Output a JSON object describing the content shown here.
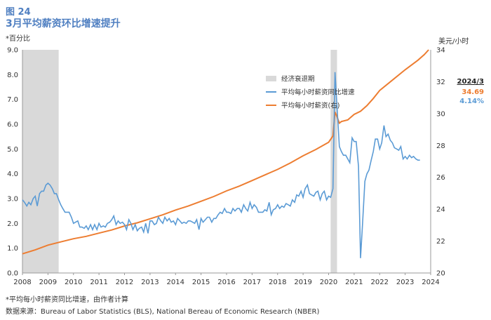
{
  "header": {
    "figure_label": "图 24",
    "title": "3月平均薪资环比增速提升"
  },
  "units": {
    "left": "*百分比",
    "right": "美元/小时"
  },
  "latest": {
    "date": "2024/3",
    "wage": "34.69",
    "growth": "4.14%"
  },
  "footnote": "*平均每小时薪资同比增速，由作者计算",
  "source": "数据来源：Bureau of Labor Statistics (BLS), National Bereau of Economic Research (NBER)",
  "chart_data": {
    "type": "line",
    "colors": {
      "growth": "#5b9bd5",
      "wage": "#ed7d31",
      "recession": "#d9d9d9"
    },
    "x_range": [
      2008,
      2024
    ],
    "x_ticks": [
      "2008",
      "2009",
      "2010",
      "2011",
      "2012",
      "2013",
      "2014",
      "2015",
      "2016",
      "2017",
      "2018",
      "2019",
      "2020",
      "2021",
      "2022",
      "2023",
      "2024"
    ],
    "y_left": {
      "range": [
        0.0,
        9.0
      ],
      "ticks": [
        "0.0",
        "1.0",
        "2.0",
        "3.0",
        "4.0",
        "5.0",
        "6.0",
        "7.0",
        "8.0",
        "9.0"
      ]
    },
    "y_right": {
      "range": [
        20,
        34
      ],
      "ticks": [
        "20",
        "22",
        "24",
        "26",
        "28",
        "30",
        "32",
        "34"
      ]
    },
    "grid": false,
    "legend_position": "top-center-right",
    "legend": {
      "recession": "经济衰退期",
      "growth": "平均每小时薪资同比增速",
      "wage": "平均每小时薪资(右)"
    },
    "recessions": [
      [
        2008.0,
        2009.42
      ],
      [
        2020.08,
        2020.33
      ]
    ],
    "series": [
      {
        "name": "平均每小时薪资同比增速",
        "axis": "left",
        "points": [
          [
            2008.0,
            2.95
          ],
          [
            2008.08,
            2.85
          ],
          [
            2008.17,
            2.7
          ],
          [
            2008.25,
            2.85
          ],
          [
            2008.33,
            2.75
          ],
          [
            2008.42,
            3.0
          ],
          [
            2008.5,
            3.1
          ],
          [
            2008.58,
            2.7
          ],
          [
            2008.67,
            3.2
          ],
          [
            2008.75,
            3.3
          ],
          [
            2008.83,
            3.3
          ],
          [
            2008.92,
            3.55
          ],
          [
            2009.0,
            3.62
          ],
          [
            2009.08,
            3.55
          ],
          [
            2009.17,
            3.4
          ],
          [
            2009.25,
            3.2
          ],
          [
            2009.33,
            3.2
          ],
          [
            2009.42,
            2.95
          ],
          [
            2009.5,
            2.75
          ],
          [
            2009.58,
            2.6
          ],
          [
            2009.67,
            2.45
          ],
          [
            2009.75,
            2.45
          ],
          [
            2009.83,
            2.45
          ],
          [
            2009.92,
            2.25
          ],
          [
            2010.0,
            2.0
          ],
          [
            2010.08,
            2.05
          ],
          [
            2010.17,
            2.1
          ],
          [
            2010.25,
            1.85
          ],
          [
            2010.33,
            1.85
          ],
          [
            2010.42,
            1.8
          ],
          [
            2010.5,
            1.9
          ],
          [
            2010.58,
            1.75
          ],
          [
            2010.67,
            1.95
          ],
          [
            2010.75,
            1.75
          ],
          [
            2010.83,
            1.95
          ],
          [
            2010.92,
            1.75
          ],
          [
            2011.0,
            2.0
          ],
          [
            2011.08,
            1.85
          ],
          [
            2011.17,
            1.9
          ],
          [
            2011.25,
            1.85
          ],
          [
            2011.33,
            2.0
          ],
          [
            2011.42,
            2.05
          ],
          [
            2011.5,
            2.15
          ],
          [
            2011.58,
            2.3
          ],
          [
            2011.67,
            1.95
          ],
          [
            2011.75,
            2.1
          ],
          [
            2011.83,
            2.0
          ],
          [
            2011.92,
            2.05
          ],
          [
            2012.0,
            1.95
          ],
          [
            2012.08,
            1.75
          ],
          [
            2012.17,
            2.15
          ],
          [
            2012.25,
            2.0
          ],
          [
            2012.33,
            1.75
          ],
          [
            2012.42,
            1.95
          ],
          [
            2012.5,
            1.7
          ],
          [
            2012.58,
            1.8
          ],
          [
            2012.67,
            1.85
          ],
          [
            2012.75,
            1.65
          ],
          [
            2012.83,
            2.0
          ],
          [
            2012.92,
            1.6
          ],
          [
            2013.0,
            2.1
          ],
          [
            2013.08,
            2.1
          ],
          [
            2013.17,
            1.95
          ],
          [
            2013.25,
            2.0
          ],
          [
            2013.33,
            2.25
          ],
          [
            2013.42,
            2.1
          ],
          [
            2013.5,
            2.0
          ],
          [
            2013.58,
            2.25
          ],
          [
            2013.67,
            2.1
          ],
          [
            2013.75,
            2.2
          ],
          [
            2013.83,
            2.05
          ],
          [
            2013.92,
            2.1
          ],
          [
            2014.0,
            1.95
          ],
          [
            2014.08,
            2.2
          ],
          [
            2014.17,
            2.1
          ],
          [
            2014.25,
            2.0
          ],
          [
            2014.33,
            2.05
          ],
          [
            2014.42,
            2.0
          ],
          [
            2014.5,
            2.1
          ],
          [
            2014.58,
            2.1
          ],
          [
            2014.67,
            2.05
          ],
          [
            2014.75,
            2.0
          ],
          [
            2014.83,
            2.15
          ],
          [
            2014.92,
            1.75
          ],
          [
            2015.0,
            2.2
          ],
          [
            2015.08,
            2.05
          ],
          [
            2015.17,
            2.15
          ],
          [
            2015.25,
            2.25
          ],
          [
            2015.33,
            2.25
          ],
          [
            2015.42,
            2.05
          ],
          [
            2015.5,
            2.2
          ],
          [
            2015.58,
            2.2
          ],
          [
            2015.67,
            2.35
          ],
          [
            2015.75,
            2.45
          ],
          [
            2015.83,
            2.4
          ],
          [
            2015.92,
            2.6
          ],
          [
            2016.0,
            2.45
          ],
          [
            2016.08,
            2.45
          ],
          [
            2016.17,
            2.4
          ],
          [
            2016.25,
            2.6
          ],
          [
            2016.33,
            2.5
          ],
          [
            2016.42,
            2.6
          ],
          [
            2016.5,
            2.6
          ],
          [
            2016.58,
            2.45
          ],
          [
            2016.67,
            2.75
          ],
          [
            2016.75,
            2.6
          ],
          [
            2016.83,
            2.5
          ],
          [
            2016.92,
            2.85
          ],
          [
            2017.0,
            2.6
          ],
          [
            2017.08,
            2.75
          ],
          [
            2017.17,
            2.65
          ],
          [
            2017.25,
            2.45
          ],
          [
            2017.33,
            2.45
          ],
          [
            2017.42,
            2.45
          ],
          [
            2017.5,
            2.55
          ],
          [
            2017.58,
            2.5
          ],
          [
            2017.67,
            2.85
          ],
          [
            2017.75,
            2.35
          ],
          [
            2017.83,
            2.55
          ],
          [
            2017.92,
            2.6
          ],
          [
            2018.0,
            2.75
          ],
          [
            2018.08,
            2.6
          ],
          [
            2018.17,
            2.7
          ],
          [
            2018.25,
            2.65
          ],
          [
            2018.33,
            2.8
          ],
          [
            2018.42,
            2.75
          ],
          [
            2018.5,
            2.7
          ],
          [
            2018.58,
            2.95
          ],
          [
            2018.67,
            2.85
          ],
          [
            2018.75,
            3.15
          ],
          [
            2018.83,
            3.1
          ],
          [
            2018.92,
            3.3
          ],
          [
            2019.0,
            3.05
          ],
          [
            2019.08,
            3.4
          ],
          [
            2019.17,
            3.55
          ],
          [
            2019.25,
            3.2
          ],
          [
            2019.33,
            3.15
          ],
          [
            2019.42,
            3.1
          ],
          [
            2019.5,
            3.25
          ],
          [
            2019.58,
            3.3
          ],
          [
            2019.67,
            2.95
          ],
          [
            2019.75,
            3.2
          ],
          [
            2019.83,
            3.3
          ],
          [
            2019.92,
            2.95
          ],
          [
            2020.0,
            3.1
          ],
          [
            2020.08,
            3.05
          ],
          [
            2020.17,
            3.4
          ],
          [
            2020.25,
            8.1
          ],
          [
            2020.33,
            6.7
          ],
          [
            2020.42,
            5.1
          ],
          [
            2020.5,
            4.9
          ],
          [
            2020.58,
            4.75
          ],
          [
            2020.67,
            4.75
          ],
          [
            2020.75,
            4.6
          ],
          [
            2020.83,
            4.45
          ],
          [
            2020.92,
            5.45
          ],
          [
            2021.0,
            5.3
          ],
          [
            2021.08,
            5.3
          ],
          [
            2021.17,
            4.3
          ],
          [
            2021.25,
            0.6
          ],
          [
            2021.33,
            2.0
          ],
          [
            2021.42,
            3.7
          ],
          [
            2021.5,
            4.0
          ],
          [
            2021.58,
            4.15
          ],
          [
            2021.67,
            4.55
          ],
          [
            2021.75,
            4.9
          ],
          [
            2021.83,
            5.4
          ],
          [
            2021.92,
            5.4
          ],
          [
            2022.0,
            5.0
          ],
          [
            2022.08,
            5.25
          ],
          [
            2022.17,
            5.95
          ],
          [
            2022.25,
            5.5
          ],
          [
            2022.33,
            5.6
          ],
          [
            2022.42,
            5.35
          ],
          [
            2022.5,
            5.25
          ],
          [
            2022.58,
            5.05
          ],
          [
            2022.67,
            5.0
          ],
          [
            2022.75,
            4.95
          ],
          [
            2022.83,
            5.1
          ],
          [
            2022.92,
            4.6
          ],
          [
            2023.0,
            4.7
          ],
          [
            2023.08,
            4.6
          ],
          [
            2023.17,
            4.75
          ],
          [
            2023.25,
            4.65
          ],
          [
            2023.33,
            4.7
          ],
          [
            2023.42,
            4.6
          ],
          [
            2023.5,
            4.55
          ],
          [
            2023.58,
            4.55
          ]
        ]
      },
      {
        "name": "平均每小时薪资(右)",
        "axis": "right",
        "points": [
          [
            2008.0,
            21.2
          ],
          [
            2008.5,
            21.45
          ],
          [
            2009.0,
            21.75
          ],
          [
            2009.5,
            21.95
          ],
          [
            2010.0,
            22.15
          ],
          [
            2010.5,
            22.3
          ],
          [
            2011.0,
            22.5
          ],
          [
            2011.5,
            22.7
          ],
          [
            2012.0,
            22.95
          ],
          [
            2012.5,
            23.15
          ],
          [
            2013.0,
            23.4
          ],
          [
            2013.5,
            23.65
          ],
          [
            2014.0,
            23.95
          ],
          [
            2014.5,
            24.2
          ],
          [
            2015.0,
            24.5
          ],
          [
            2015.5,
            24.8
          ],
          [
            2016.0,
            25.15
          ],
          [
            2016.5,
            25.45
          ],
          [
            2017.0,
            25.8
          ],
          [
            2017.5,
            26.15
          ],
          [
            2018.0,
            26.5
          ],
          [
            2018.5,
            26.9
          ],
          [
            2019.0,
            27.35
          ],
          [
            2019.5,
            27.75
          ],
          [
            2020.0,
            28.2
          ],
          [
            2020.17,
            28.6
          ],
          [
            2020.25,
            30.1
          ],
          [
            2020.33,
            29.8
          ],
          [
            2020.42,
            29.4
          ],
          [
            2020.5,
            29.5
          ],
          [
            2020.75,
            29.6
          ],
          [
            2021.0,
            29.95
          ],
          [
            2021.25,
            30.15
          ],
          [
            2021.5,
            30.5
          ],
          [
            2021.75,
            30.95
          ],
          [
            2022.0,
            31.45
          ],
          [
            2022.5,
            32.1
          ],
          [
            2023.0,
            32.75
          ],
          [
            2023.5,
            33.35
          ],
          [
            2023.75,
            33.7
          ],
          [
            2023.92,
            34.0
          ]
        ]
      }
    ]
  }
}
